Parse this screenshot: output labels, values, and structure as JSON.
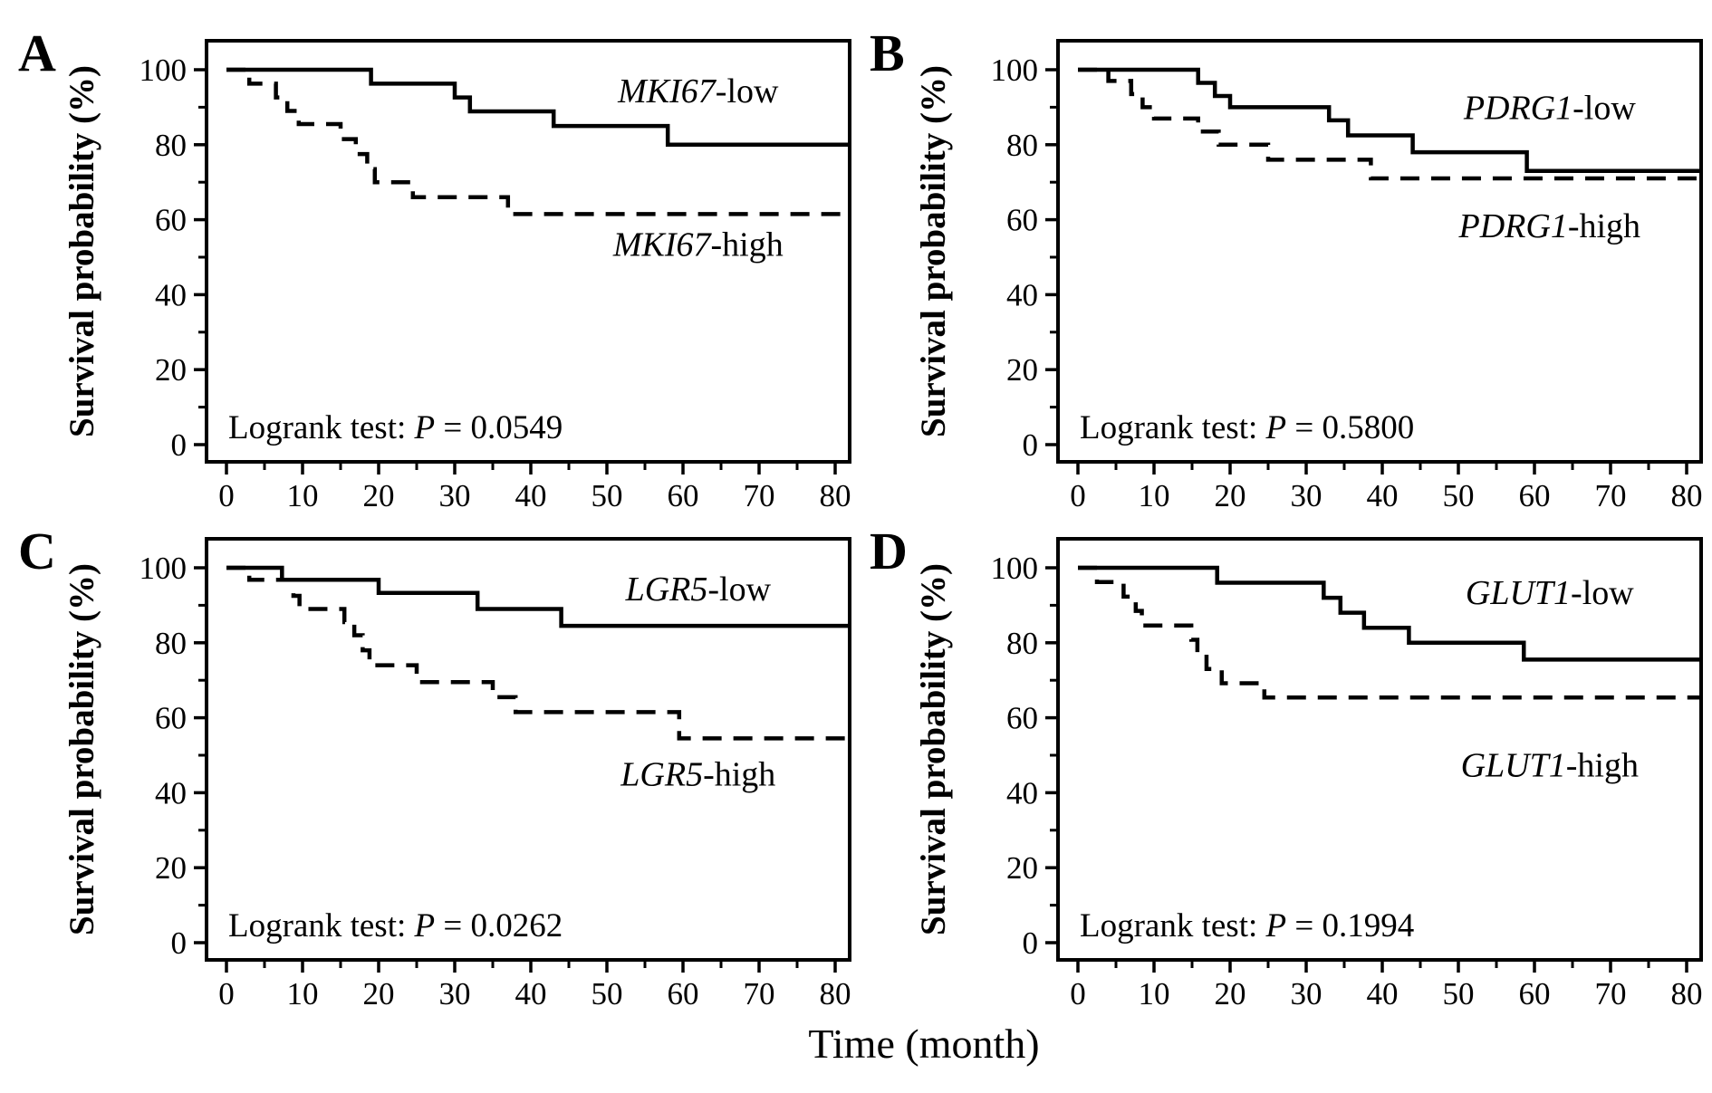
{
  "style": {
    "ink": "#000000",
    "background": "#ffffff"
  },
  "chart_data": {
    "type": "line",
    "subtype": "kaplan_meier_step_curves",
    "title": "",
    "xlabel": "Time (month)",
    "ylabel": "Survival probability (%)",
    "grid": false,
    "legend_position": "inline-labels",
    "xlim": [
      -2.6,
      81.9
    ],
    "ylim": [
      -4.6,
      107.7
    ],
    "x_ticks": [
      0,
      10,
      20,
      30,
      40,
      50,
      60,
      70,
      80
    ],
    "x_minor_ticks": [
      5,
      15,
      25,
      35,
      45,
      55,
      65,
      75
    ],
    "y_ticks": [
      0,
      20,
      40,
      60,
      80,
      100
    ],
    "y_minor_ticks": [
      10,
      30,
      50,
      70,
      90
    ],
    "logrank_prefix": "Logrank test:",
    "p_symbol": "P",
    "p_equals": "=",
    "panels": [
      {
        "letter": "A",
        "gene": "MKI67",
        "logrank_p": "0.0549",
        "series": [
          {
            "name": "MKI67-low",
            "gene": "MKI67",
            "suffix": "-low",
            "line_style": "solid",
            "label_pos": {
              "t": 62,
              "s": 94.5
            },
            "steps": [
              [
                0,
                100
              ],
              [
                19,
                96.3
              ],
              [
                30,
                92.6
              ],
              [
                32,
                88.9
              ],
              [
                43,
                85
              ],
              [
                58,
                80
              ]
            ],
            "end_t": 81.9,
            "final_value": 80
          },
          {
            "name": "MKI67-high",
            "gene": "MKI67",
            "suffix": "-high",
            "line_style": "dashed",
            "label_pos": {
              "t": 62,
              "s": 53.5
            },
            "steps": [
              [
                0,
                100
              ],
              [
                3,
                96.3
              ],
              [
                6.5,
                92.6
              ],
              [
                8,
                89
              ],
              [
                9.5,
                85.5
              ],
              [
                15,
                81.5
              ],
              [
                17,
                77.5
              ],
              [
                18.5,
                73.5
              ],
              [
                19.5,
                70
              ],
              [
                24.5,
                66
              ],
              [
                37,
                61.5
              ]
            ],
            "end_t": 81.9,
            "final_value": 61.5
          }
        ]
      },
      {
        "letter": "B",
        "gene": "PDRG1",
        "logrank_p": "0.5800",
        "series": [
          {
            "name": "PDRG1-low",
            "gene": "PDRG1",
            "suffix": "-low",
            "line_style": "solid",
            "label_pos": {
              "t": 62,
              "s": 90
            },
            "steps": [
              [
                0,
                100
              ],
              [
                15.8,
                96.5
              ],
              [
                18,
                93
              ],
              [
                20,
                90
              ],
              [
                33,
                86.5
              ],
              [
                35.5,
                82.5
              ],
              [
                44,
                78
              ],
              [
                59,
                73
              ]
            ],
            "end_t": 81.9,
            "final_value": 73
          },
          {
            "name": "PDRG1-high",
            "gene": "PDRG1",
            "suffix": "-high",
            "line_style": "dashed",
            "label_pos": {
              "t": 62,
              "s": 58.5
            },
            "steps": [
              [
                0,
                100
              ],
              [
                4,
                97
              ],
              [
                7,
                93.5
              ],
              [
                8.5,
                90
              ],
              [
                10,
                87
              ],
              [
                15.8,
                83.5
              ],
              [
                18.5,
                80
              ],
              [
                25,
                76
              ],
              [
                38.5,
                71
              ]
            ],
            "end_t": 81.9,
            "final_value": 71
          }
        ]
      },
      {
        "letter": "C",
        "gene": "LGR5",
        "logrank_p": "0.0262",
        "series": [
          {
            "name": "LGR5-low",
            "gene": "LGR5",
            "suffix": "-low",
            "line_style": "solid",
            "label_pos": {
              "t": 62,
              "s": 94.5
            },
            "steps": [
              [
                0,
                100
              ],
              [
                7.3,
                96.8
              ],
              [
                20,
                93.3
              ],
              [
                33,
                89
              ],
              [
                44,
                84.5
              ]
            ],
            "end_t": 81.9,
            "final_value": 84.5
          },
          {
            "name": "LGR5-high",
            "gene": "LGR5",
            "suffix": "-high",
            "line_style": "dashed",
            "label_pos": {
              "t": 62,
              "s": 45
            },
            "steps": [
              [
                0,
                100
              ],
              [
                3,
                96.8
              ],
              [
                8.8,
                92.5
              ],
              [
                9.6,
                89
              ],
              [
                15.5,
                85.5
              ],
              [
                16.8,
                82
              ],
              [
                17.9,
                78
              ],
              [
                18.8,
                74
              ],
              [
                25,
                69.5
              ],
              [
                35,
                65.5
              ],
              [
                38,
                61.5
              ],
              [
                59.5,
                54.5
              ]
            ],
            "end_t": 81.9,
            "final_value": 54.5
          }
        ]
      },
      {
        "letter": "D",
        "gene": "GLUT1",
        "logrank_p": "0.1994",
        "series": [
          {
            "name": "GLUT1-low",
            "gene": "GLUT1",
            "suffix": "-low",
            "line_style": "solid",
            "label_pos": {
              "t": 62,
              "s": 93.5
            },
            "steps": [
              [
                0,
                100
              ],
              [
                18.3,
                96
              ],
              [
                32.3,
                92
              ],
              [
                34.5,
                88
              ],
              [
                37.6,
                84
              ],
              [
                43.5,
                80
              ],
              [
                58.6,
                75.5
              ]
            ],
            "end_t": 81.9,
            "final_value": 75.5
          },
          {
            "name": "GLUT1-high",
            "gene": "GLUT1",
            "suffix": "-high",
            "line_style": "dashed",
            "label_pos": {
              "t": 62,
              "s": 47.5
            },
            "steps": [
              [
                0,
                100
              ],
              [
                2.5,
                96.2
              ],
              [
                6,
                92.3
              ],
              [
                7.6,
                88.5
              ],
              [
                8.4,
                84.6
              ],
              [
                14.9,
                80.8
              ],
              [
                15.7,
                76.9
              ],
              [
                16.9,
                73
              ],
              [
                18.9,
                69.2
              ],
              [
                24.5,
                65.4
              ]
            ],
            "end_t": 81.9,
            "final_value": 65.4
          }
        ]
      }
    ]
  }
}
